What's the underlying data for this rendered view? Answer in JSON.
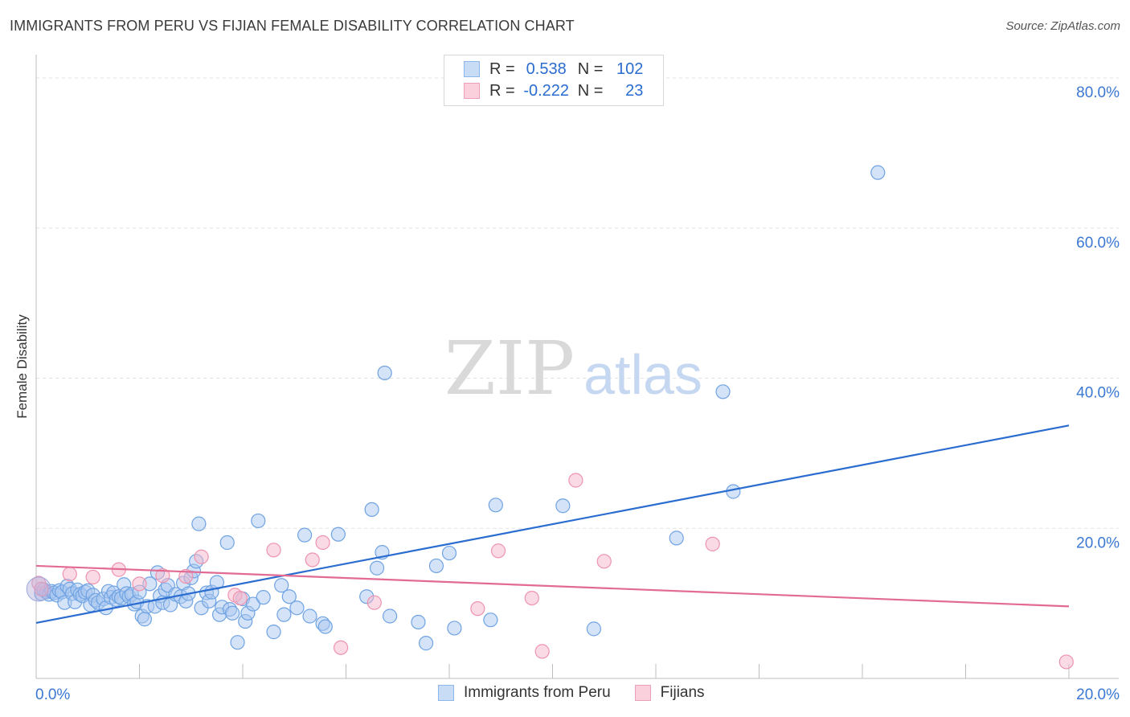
{
  "title": "IMMIGRANTS FROM PERU VS FIJIAN FEMALE DISABILITY CORRELATION CHART",
  "source": "Source: ZipAtlas.com",
  "watermark": {
    "zip": "ZIP",
    "atlas": "atlas"
  },
  "legend": {
    "r_label": "R =",
    "n_label": "N =",
    "rows": [
      {
        "r": "0.538",
        "n": "102",
        "color": "#a9c8f0"
      },
      {
        "r": "-0.222",
        "n": "23",
        "color": "#f5b8cb"
      }
    ]
  },
  "chart_data": {
    "type": "scatter",
    "ylabel": "Female Disability",
    "xlim": [
      0,
      20
    ],
    "ylim": [
      0,
      80
    ],
    "x_tick_labels": [
      "0.0%",
      "20.0%"
    ],
    "y_tick_labels": [
      "20.0%",
      "40.0%",
      "60.0%",
      "80.0%"
    ],
    "y_ticks": [
      20,
      40,
      60,
      80
    ],
    "grid": true,
    "legend_position": "top-center",
    "series": [
      {
        "name": "Immigrants from Peru",
        "color": "#6fa3e3",
        "fill": "#a9c8f0",
        "trend": {
          "x": [
            0,
            20
          ],
          "y": [
            7.4,
            33.7
          ],
          "color": "#2a6ccf"
        },
        "points": [
          [
            0.1,
            11.3
          ],
          [
            0.15,
            11.8
          ],
          [
            0.2,
            11.5
          ],
          [
            0.25,
            11.2
          ],
          [
            0.3,
            11.6
          ],
          [
            0.35,
            11.4
          ],
          [
            0.4,
            11.1
          ],
          [
            0.45,
            11.7
          ],
          [
            0.5,
            11.5
          ],
          [
            0.55,
            10.1
          ],
          [
            0.6,
            12.3
          ],
          [
            0.65,
            11.9
          ],
          [
            0.7,
            11.3
          ],
          [
            0.75,
            10.2
          ],
          [
            0.8,
            11.8
          ],
          [
            0.85,
            11.2
          ],
          [
            0.9,
            11.0
          ],
          [
            0.95,
            11.5
          ],
          [
            1.0,
            11.7
          ],
          [
            1.05,
            9.8
          ],
          [
            1.1,
            11.1
          ],
          [
            1.15,
            10.4
          ],
          [
            1.2,
            10.1
          ],
          [
            1.3,
            10.6
          ],
          [
            1.35,
            9.4
          ],
          [
            1.4,
            11.6
          ],
          [
            1.45,
            10.8
          ],
          [
            1.5,
            11.4
          ],
          [
            1.55,
            10.5
          ],
          [
            1.6,
            10.9
          ],
          [
            1.65,
            10.7
          ],
          [
            1.7,
            12.5
          ],
          [
            1.75,
            11.3
          ],
          [
            1.8,
            10.9
          ],
          [
            1.85,
            11.2
          ],
          [
            1.9,
            9.9
          ],
          [
            1.95,
            10.2
          ],
          [
            2.0,
            11.5
          ],
          [
            2.05,
            8.3
          ],
          [
            2.1,
            7.9
          ],
          [
            2.15,
            9.6
          ],
          [
            2.2,
            12.6
          ],
          [
            2.3,
            9.6
          ],
          [
            2.35,
            14.1
          ],
          [
            2.4,
            11.0
          ],
          [
            2.45,
            10.1
          ],
          [
            2.5,
            11.8
          ],
          [
            2.55,
            12.4
          ],
          [
            2.6,
            9.8
          ],
          [
            2.7,
            11.2
          ],
          [
            2.8,
            10.9
          ],
          [
            2.85,
            12.7
          ],
          [
            2.9,
            10.3
          ],
          [
            2.95,
            11.3
          ],
          [
            3.0,
            13.4
          ],
          [
            3.05,
            14.3
          ],
          [
            3.1,
            15.6
          ],
          [
            3.15,
            20.6
          ],
          [
            3.2,
            9.4
          ],
          [
            3.3,
            11.4
          ],
          [
            3.35,
            10.3
          ],
          [
            3.4,
            11.5
          ],
          [
            3.5,
            12.8
          ],
          [
            3.55,
            8.5
          ],
          [
            3.6,
            9.5
          ],
          [
            3.7,
            18.1
          ],
          [
            3.75,
            9.2
          ],
          [
            3.8,
            8.7
          ],
          [
            3.9,
            4.8
          ],
          [
            4.0,
            10.6
          ],
          [
            4.05,
            7.6
          ],
          [
            4.1,
            8.7
          ],
          [
            4.2,
            9.9
          ],
          [
            4.3,
            21.0
          ],
          [
            4.4,
            10.8
          ],
          [
            4.6,
            6.2
          ],
          [
            4.75,
            12.4
          ],
          [
            4.8,
            8.5
          ],
          [
            4.9,
            10.9
          ],
          [
            5.05,
            9.4
          ],
          [
            5.2,
            19.1
          ],
          [
            5.3,
            8.3
          ],
          [
            5.55,
            7.3
          ],
          [
            5.6,
            6.9
          ],
          [
            5.85,
            19.2
          ],
          [
            6.4,
            10.9
          ],
          [
            6.5,
            22.5
          ],
          [
            6.6,
            14.7
          ],
          [
            6.7,
            16.8
          ],
          [
            6.75,
            40.7
          ],
          [
            6.85,
            8.3
          ],
          [
            7.4,
            7.5
          ],
          [
            7.55,
            4.7
          ],
          [
            7.75,
            15.0
          ],
          [
            8.0,
            16.7
          ],
          [
            8.1,
            6.7
          ],
          [
            8.8,
            7.8
          ],
          [
            8.9,
            23.1
          ],
          [
            10.2,
            23.0
          ],
          [
            10.8,
            6.6
          ],
          [
            12.4,
            18.7
          ],
          [
            13.3,
            38.2
          ],
          [
            13.5,
            24.9
          ],
          [
            16.3,
            67.4
          ]
        ]
      },
      {
        "name": "Fijians",
        "color": "#ee93ae",
        "fill": "#f5b8cb",
        "trend": {
          "x": [
            0,
            20
          ],
          "y": [
            15.0,
            9.6
          ],
          "color": "#e26b94"
        },
        "points": [
          [
            0.05,
            12.7
          ],
          [
            0.1,
            11.9
          ],
          [
            0.65,
            13.9
          ],
          [
            1.1,
            13.5
          ],
          [
            1.6,
            14.5
          ],
          [
            2.0,
            12.6
          ],
          [
            2.45,
            13.7
          ],
          [
            2.9,
            13.6
          ],
          [
            3.2,
            16.2
          ],
          [
            3.85,
            11.1
          ],
          [
            3.95,
            10.7
          ],
          [
            4.6,
            17.1
          ],
          [
            5.35,
            15.8
          ],
          [
            5.55,
            18.1
          ],
          [
            5.9,
            4.1
          ],
          [
            6.55,
            10.1
          ],
          [
            8.55,
            9.3
          ],
          [
            8.95,
            17.0
          ],
          [
            9.6,
            10.7
          ],
          [
            9.8,
            3.6
          ],
          [
            10.45,
            26.4
          ],
          [
            11.0,
            15.6
          ],
          [
            13.1,
            17.9
          ],
          [
            19.95,
            2.2
          ]
        ]
      }
    ]
  },
  "bottom_legend": [
    {
      "label": "Immigrants from Peru",
      "color": "#a9c8f0",
      "border": "#6fa3e3"
    },
    {
      "label": "Fijians",
      "color": "#f5b8cb",
      "border": "#ee93ae"
    }
  ]
}
